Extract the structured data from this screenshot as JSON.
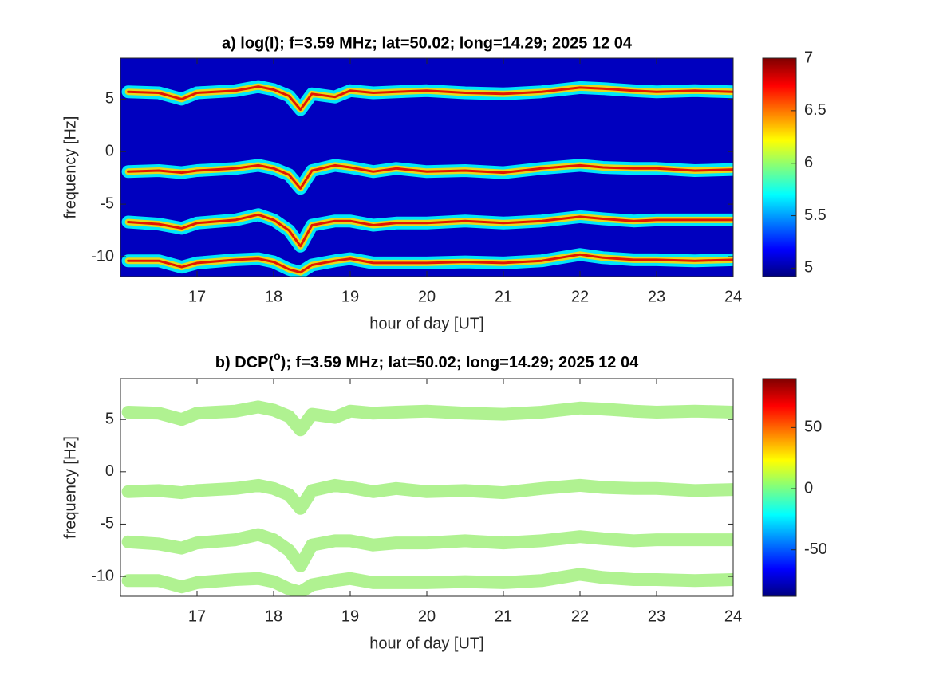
{
  "chart_data": [
    {
      "type": "spectrogram",
      "title": "a) log(I); f=3.59 MHz;  lat=50.02; long=14.29; 2025 12 04",
      "xlabel": "hour of day [UT]",
      "ylabel": "frequency [Hz]",
      "xlim": [
        16,
        24
      ],
      "xticks": [
        17,
        18,
        19,
        20,
        21,
        22,
        23,
        24
      ],
      "ylim": [
        -11.9,
        8.9
      ],
      "yticks": [
        -10,
        -5,
        0,
        5
      ],
      "clim": [
        4.92,
        7.0
      ],
      "cticks": [
        5,
        5.5,
        6,
        6.5,
        7
      ],
      "colormap": [
        "#00007f",
        "#0000ff",
        "#007fff",
        "#00ffff",
        "#7fff7f",
        "#ffff00",
        "#ff7f00",
        "#ff0000",
        "#7f0000"
      ],
      "background_level": 5.05,
      "ridge_levels": [
        5.7,
        6.3,
        6.8
      ],
      "x": [
        16.1,
        16.5,
        16.8,
        17,
        17.5,
        17.8,
        18,
        18.2,
        18.35,
        18.5,
        18.8,
        19,
        19.3,
        19.6,
        20,
        20.5,
        21,
        21.5,
        22,
        22.3,
        22.7,
        23,
        23.5,
        24
      ],
      "series": [
        {
          "values": [
            5.7,
            5.6,
            5.0,
            5.6,
            5.8,
            6.2,
            5.9,
            5.3,
            4.0,
            5.5,
            5.2,
            5.8,
            5.6,
            5.7,
            5.8,
            5.6,
            5.5,
            5.7,
            6.1,
            6.0,
            5.8,
            5.7,
            5.8,
            5.7
          ]
        },
        {
          "values": [
            -1.9,
            -1.8,
            -2.0,
            -1.8,
            -1.6,
            -1.3,
            -1.6,
            -2.2,
            -3.5,
            -1.8,
            -1.3,
            -1.5,
            -1.9,
            -1.6,
            -1.9,
            -1.8,
            -2.0,
            -1.6,
            -1.3,
            -1.5,
            -1.6,
            -1.6,
            -1.8,
            -1.7
          ]
        },
        {
          "values": [
            -6.7,
            -6.9,
            -7.3,
            -6.8,
            -6.5,
            -6.0,
            -6.5,
            -7.5,
            -9,
            -7,
            -6.6,
            -6.6,
            -7.0,
            -6.8,
            -6.8,
            -6.6,
            -6.8,
            -6.6,
            -6.2,
            -6.4,
            -6.6,
            -6.5,
            -6.5,
            -6.5
          ]
        },
        {
          "values": [
            -10.4,
            -10.4,
            -11,
            -10.6,
            -10.3,
            -10.2,
            -10.5,
            -11.2,
            -11.5,
            -10.8,
            -10.4,
            -10.2,
            -10.6,
            -10.6,
            -10.6,
            -10.5,
            -10.6,
            -10.4,
            -9.8,
            -10.1,
            -10.3,
            -10.3,
            -10.4,
            -10.3
          ]
        }
      ]
    },
    {
      "type": "spectrogram",
      "title_prefix": "b) DCP(",
      "title_superscript": "o",
      "title_suffix": "); f=3.59 MHz;  lat=50.02; long=14.29; 2025 12 04",
      "xlabel": "hour of day [UT]",
      "ylabel": "frequency [Hz]",
      "xlim": [
        16,
        24
      ],
      "xticks": [
        17,
        18,
        19,
        20,
        21,
        22,
        23,
        24
      ],
      "ylim": [
        -11.9,
        8.9
      ],
      "yticks": [
        -10,
        -5,
        0,
        5
      ],
      "clim": [
        -88,
        90
      ],
      "cticks": [
        -50,
        0,
        50
      ],
      "colormap": [
        "#00007f",
        "#0000ff",
        "#007fff",
        "#00ffff",
        "#7fff7f",
        "#ffff00",
        "#ff7f00",
        "#ff0000",
        "#7f0000"
      ],
      "background_color": "#ffffff",
      "ridge_color": "#a2f07e",
      "x": [
        16.1,
        16.5,
        16.8,
        17,
        17.5,
        17.8,
        18,
        18.2,
        18.35,
        18.5,
        18.8,
        19,
        19.3,
        19.6,
        20,
        20.5,
        21,
        21.5,
        22,
        22.3,
        22.7,
        23,
        23.5,
        24
      ],
      "series": [
        {
          "values": [
            5.7,
            5.6,
            5.0,
            5.6,
            5.8,
            6.2,
            5.9,
            5.3,
            4.0,
            5.5,
            5.2,
            5.8,
            5.6,
            5.7,
            5.8,
            5.6,
            5.5,
            5.7,
            6.1,
            6.0,
            5.8,
            5.7,
            5.8,
            5.7
          ]
        },
        {
          "values": [
            -1.9,
            -1.8,
            -2.0,
            -1.8,
            -1.6,
            -1.3,
            -1.6,
            -2.2,
            -3.5,
            -1.8,
            -1.3,
            -1.5,
            -1.9,
            -1.6,
            -1.9,
            -1.8,
            -2.0,
            -1.6,
            -1.3,
            -1.5,
            -1.6,
            -1.6,
            -1.8,
            -1.7
          ]
        },
        {
          "values": [
            -6.7,
            -6.9,
            -7.3,
            -6.8,
            -6.5,
            -6.0,
            -6.5,
            -7.5,
            -9,
            -7,
            -6.6,
            -6.6,
            -7.0,
            -6.8,
            -6.8,
            -6.6,
            -6.8,
            -6.6,
            -6.2,
            -6.4,
            -6.6,
            -6.5,
            -6.5,
            -6.5
          ]
        },
        {
          "values": [
            -10.4,
            -10.4,
            -11,
            -10.6,
            -10.3,
            -10.2,
            -10.5,
            -11.2,
            -11.5,
            -10.8,
            -10.4,
            -10.2,
            -10.6,
            -10.6,
            -10.6,
            -10.5,
            -10.6,
            -10.4,
            -9.8,
            -10.1,
            -10.3,
            -10.3,
            -10.4,
            -10.3
          ]
        }
      ]
    }
  ]
}
